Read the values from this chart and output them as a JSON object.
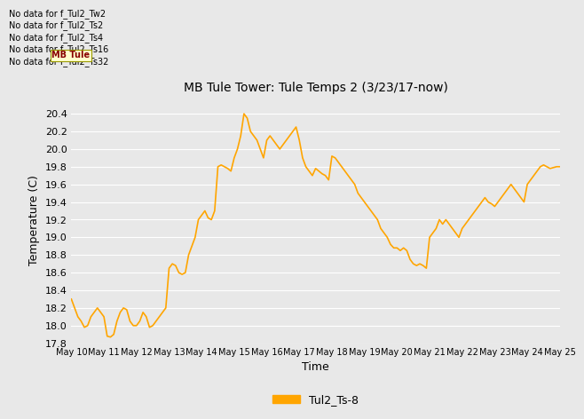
{
  "title": "MB Tule Tower: Tule Temps 2 (3/23/17-now)",
  "xlabel": "Time",
  "ylabel": "Temperature (C)",
  "line_color": "#FFA500",
  "line_label": "Tul2_Ts-8",
  "ylim": [
    17.8,
    20.6
  ],
  "yticks": [
    17.8,
    18.0,
    18.2,
    18.4,
    18.6,
    18.8,
    19.0,
    19.2,
    19.4,
    19.6,
    19.8,
    20.0,
    20.2,
    20.4
  ],
  "xtick_labels": [
    "May 10",
    "May 11",
    "May 12",
    "May 13",
    "May 14",
    "May 15",
    "May 16",
    "May 17",
    "May 18",
    "May 19",
    "May 20",
    "May 21",
    "May 22",
    "May 23",
    "May 24",
    "May 25"
  ],
  "no_data_lines": [
    "No data for f_Tul2_Tw2",
    "No data for f_Tul2_Ts2",
    "No data for f_Tul2_Ts4",
    "No data for f_Tul2_Ts16",
    "No data for f_Tul2_Ts32"
  ],
  "tooltip_text": "MB Tule",
  "bg_color": "#E8E8E8",
  "x_values": [
    0,
    0.1,
    0.2,
    0.3,
    0.4,
    0.5,
    0.6,
    0.7,
    0.8,
    0.9,
    1.0,
    1.1,
    1.2,
    1.3,
    1.4,
    1.5,
    1.6,
    1.7,
    1.8,
    1.9,
    2.0,
    2.1,
    2.2,
    2.3,
    2.4,
    2.5,
    2.6,
    2.7,
    2.8,
    2.9,
    3.0,
    3.1,
    3.2,
    3.3,
    3.4,
    3.5,
    3.6,
    3.7,
    3.8,
    3.9,
    4.0,
    4.1,
    4.2,
    4.3,
    4.4,
    4.5,
    4.6,
    4.7,
    4.8,
    4.9,
    5.0,
    5.1,
    5.2,
    5.3,
    5.4,
    5.5,
    5.6,
    5.7,
    5.8,
    5.9,
    6.0,
    6.1,
    6.2,
    6.3,
    6.4,
    6.5,
    6.6,
    6.7,
    6.8,
    6.9,
    7.0,
    7.1,
    7.2,
    7.3,
    7.4,
    7.5,
    7.6,
    7.7,
    7.8,
    7.9,
    8.0,
    8.1,
    8.2,
    8.3,
    8.4,
    8.5,
    8.6,
    8.7,
    8.8,
    8.9,
    9.0,
    9.1,
    9.2,
    9.3,
    9.4,
    9.5,
    9.6,
    9.7,
    9.8,
    9.9,
    10.0,
    10.1,
    10.2,
    10.3,
    10.4,
    10.5,
    10.6,
    10.7,
    10.8,
    10.9,
    11.0,
    11.1,
    11.2,
    11.3,
    11.4,
    11.5,
    11.6,
    11.7,
    11.8,
    11.9,
    12.0,
    12.1,
    12.2,
    12.3,
    12.4,
    12.5,
    12.6,
    12.7,
    12.8,
    12.9,
    13.0,
    13.1,
    13.2,
    13.3,
    13.4,
    13.5,
    13.6,
    13.7,
    13.8,
    13.9,
    14.0,
    14.1,
    14.2,
    14.3,
    14.4,
    14.5,
    14.6,
    14.7,
    14.8,
    14.9,
    15.0
  ],
  "y_values": [
    18.3,
    18.2,
    18.1,
    18.05,
    17.98,
    18.0,
    18.1,
    18.15,
    18.2,
    18.15,
    18.1,
    17.88,
    17.87,
    17.9,
    18.05,
    18.15,
    18.2,
    18.18,
    18.05,
    18.0,
    18.0,
    18.05,
    18.15,
    18.1,
    17.98,
    18.0,
    18.05,
    18.1,
    18.15,
    18.2,
    18.65,
    18.7,
    18.68,
    18.6,
    18.58,
    18.6,
    18.8,
    18.9,
    19.0,
    19.2,
    19.25,
    19.3,
    19.22,
    19.2,
    19.3,
    19.8,
    19.82,
    19.8,
    19.78,
    19.75,
    19.9,
    20.0,
    20.15,
    20.4,
    20.35,
    20.2,
    20.15,
    20.1,
    20.0,
    19.9,
    20.1,
    20.15,
    20.1,
    20.05,
    20.0,
    20.05,
    20.1,
    20.15,
    20.2,
    20.25,
    20.1,
    19.9,
    19.8,
    19.75,
    19.7,
    19.78,
    19.75,
    19.72,
    19.7,
    19.65,
    19.92,
    19.9,
    19.85,
    19.8,
    19.75,
    19.7,
    19.65,
    19.6,
    19.5,
    19.45,
    19.4,
    19.35,
    19.3,
    19.25,
    19.2,
    19.1,
    19.05,
    19.0,
    18.92,
    18.88,
    18.88,
    18.85,
    18.88,
    18.85,
    18.75,
    18.7,
    18.68,
    18.7,
    18.68,
    18.65,
    19.0,
    19.05,
    19.1,
    19.2,
    19.15,
    19.2,
    19.15,
    19.1,
    19.05,
    19.0,
    19.1,
    19.15,
    19.2,
    19.25,
    19.3,
    19.35,
    19.4,
    19.45,
    19.4,
    19.38,
    19.35,
    19.4,
    19.45,
    19.5,
    19.55,
    19.6,
    19.55,
    19.5,
    19.45,
    19.4,
    19.6,
    19.65,
    19.7,
    19.75,
    19.8,
    19.82,
    19.8,
    19.78,
    19.79,
    19.8,
    19.8
  ]
}
